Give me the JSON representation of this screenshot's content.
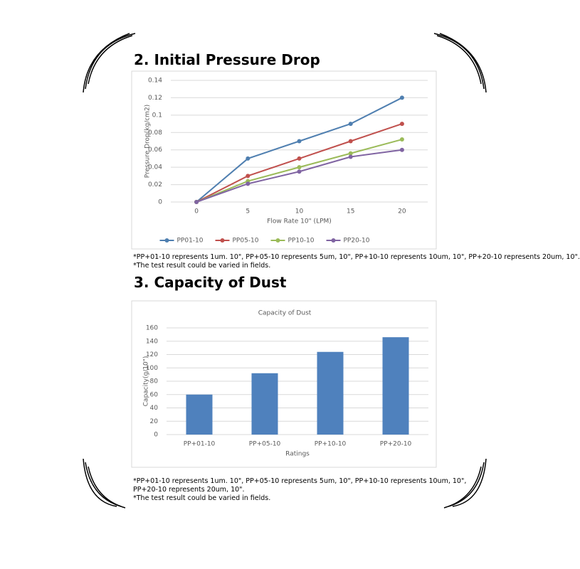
{
  "sections": [
    {
      "heading": "2. Initial Pressure Drop",
      "notes": [
        "*PP+01-10 represents 1um. 10\", PP+05-10 represents 5um, 10\", PP+10-10 represents 10um, 10\", PP+20-10 represents 20um, 10\".",
        "*The test result could be varied in fields."
      ]
    },
    {
      "heading": "3. Capacity of Dust",
      "notes": [
        "*PP+01-10 represents 1um. 10\", PP+05-10 represents 5um, 10\", PP+10-10 represents 10um, 10\", PP+20-10 represents 20um, 10\".",
        "*The test result could be varied in fields."
      ]
    }
  ],
  "chart_data": [
    {
      "type": "line",
      "categories": [
        "0",
        "5",
        "10",
        "15",
        "20"
      ],
      "series": [
        {
          "name": "PP01-10",
          "color": "#4f7fb0",
          "values": [
            0,
            0.05,
            0.07,
            0.09,
            0.12
          ]
        },
        {
          "name": "PP05-10",
          "color": "#c0504d",
          "values": [
            0,
            0.03,
            0.05,
            0.07,
            0.09
          ]
        },
        {
          "name": "PP10-10",
          "color": "#9bbb59",
          "values": [
            0,
            0.024,
            0.04,
            0.056,
            0.072
          ]
        },
        {
          "name": "PP20-10",
          "color": "#8064a2",
          "values": [
            0,
            0.021,
            0.035,
            0.052,
            0.06
          ]
        }
      ],
      "ylim": [
        0,
        0.14
      ],
      "yticks": [
        0,
        0.02,
        0.04,
        0.06,
        0.08,
        0.1,
        0.12,
        0.14
      ],
      "y_label": "Pressure Drop(kg/cm2)",
      "x_label": "Flow Rate 10\" (LPM)",
      "grid": true,
      "legend": "bottom"
    },
    {
      "type": "bar",
      "title": "Capacity of Dust",
      "categories": [
        "PP+01-10",
        "PP+05-10",
        "PP+10-10",
        "PP+20-10"
      ],
      "values": [
        60,
        92,
        124,
        146
      ],
      "color": "#4f81bd",
      "ylim": [
        0,
        160
      ],
      "yticks": [
        0,
        20,
        40,
        60,
        80,
        100,
        120,
        140,
        160
      ],
      "y_label": "Capacity(g/10\")",
      "x_label": "Ratings",
      "grid": true
    }
  ]
}
